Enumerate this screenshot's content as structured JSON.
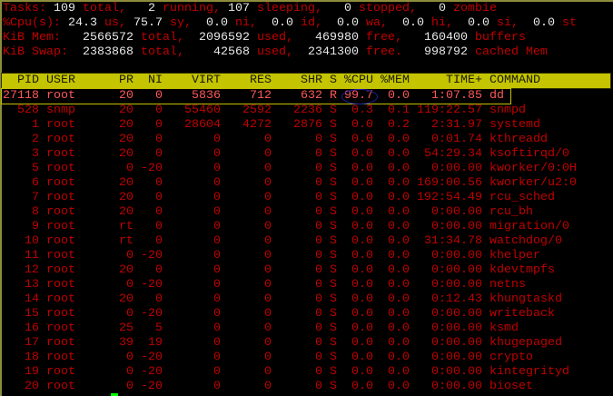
{
  "summary": {
    "tasks": {
      "label": "Tasks:",
      "total": "109",
      "total_lbl": "total,",
      "running": "2",
      "running_lbl": "running,",
      "sleeping": "107",
      "sleeping_lbl": "sleeping,",
      "stopped": "0",
      "stopped_lbl": "stopped,",
      "zombie": "0",
      "zombie_lbl": "zombie"
    },
    "cpu": {
      "label": "%Cpu(s):",
      "us": "24.3",
      "sy": "75.7",
      "ni": "0.0",
      "id": "0.0",
      "wa": "0.0",
      "hi": "0.0",
      "si": "0.0",
      "st": "0.0"
    },
    "mem": {
      "label": "KiB Mem:",
      "total": "2566572",
      "used": "2096592",
      "free": "469980",
      "buffers": "160400"
    },
    "swap": {
      "label": "KiB Swap:",
      "total": "2383868",
      "used": "42568",
      "free": "2341300",
      "cached": "998792"
    }
  },
  "columns": [
    "PID",
    "USER",
    "PR",
    "NI",
    "VIRT",
    "RES",
    "SHR",
    "S",
    "%CPU",
    "%MEM",
    "TIME+",
    "COMMAND"
  ],
  "processes": [
    [
      "27118",
      "root",
      "20",
      "0",
      "5836",
      "712",
      "632",
      "R",
      "99.7",
      "0.0",
      "1:07.85",
      "dd"
    ],
    [
      "528",
      "snmp",
      "20",
      "0",
      "55460",
      "2592",
      "2236",
      "S",
      "0.3",
      "0.1",
      "119:22.57",
      "snmpd"
    ],
    [
      "1",
      "root",
      "20",
      "0",
      "28604",
      "4272",
      "2876",
      "S",
      "0.0",
      "0.2",
      "2:31.97",
      "systemd"
    ],
    [
      "2",
      "root",
      "20",
      "0",
      "0",
      "0",
      "0",
      "S",
      "0.0",
      "0.0",
      "0:01.74",
      "kthreadd"
    ],
    [
      "3",
      "root",
      "20",
      "0",
      "0",
      "0",
      "0",
      "S",
      "0.0",
      "0.0",
      "54:29.34",
      "ksoftirqd/0"
    ],
    [
      "5",
      "root",
      "0",
      "-20",
      "0",
      "0",
      "0",
      "S",
      "0.0",
      "0.0",
      "0:00.00",
      "kworker/0:0H"
    ],
    [
      "6",
      "root",
      "20",
      "0",
      "0",
      "0",
      "0",
      "S",
      "0.0",
      "0.0",
      "169:00.56",
      "kworker/u2:0"
    ],
    [
      "7",
      "root",
      "20",
      "0",
      "0",
      "0",
      "0",
      "S",
      "0.0",
      "0.0",
      "192:54.49",
      "rcu_sched"
    ],
    [
      "8",
      "root",
      "20",
      "0",
      "0",
      "0",
      "0",
      "S",
      "0.0",
      "0.0",
      "0:00.00",
      "rcu_bh"
    ],
    [
      "9",
      "root",
      "rt",
      "0",
      "0",
      "0",
      "0",
      "S",
      "0.0",
      "0.0",
      "0:00.00",
      "migration/0"
    ],
    [
      "10",
      "root",
      "rt",
      "0",
      "0",
      "0",
      "0",
      "S",
      "0.0",
      "0.0",
      "31:34.78",
      "watchdog/0"
    ],
    [
      "11",
      "root",
      "0",
      "-20",
      "0",
      "0",
      "0",
      "S",
      "0.0",
      "0.0",
      "0:00.00",
      "khelper"
    ],
    [
      "12",
      "root",
      "20",
      "0",
      "0",
      "0",
      "0",
      "S",
      "0.0",
      "0.0",
      "0:00.00",
      "kdevtmpfs"
    ],
    [
      "13",
      "root",
      "0",
      "-20",
      "0",
      "0",
      "0",
      "S",
      "0.0",
      "0.0",
      "0:00.00",
      "netns"
    ],
    [
      "14",
      "root",
      "20",
      "0",
      "0",
      "0",
      "0",
      "S",
      "0.0",
      "0.0",
      "0:12.43",
      "khungtaskd"
    ],
    [
      "15",
      "root",
      "0",
      "-20",
      "0",
      "0",
      "0",
      "S",
      "0.0",
      "0.0",
      "0:00.00",
      "writeback"
    ],
    [
      "16",
      "root",
      "25",
      "5",
      "0",
      "0",
      "0",
      "S",
      "0.0",
      "0.0",
      "0:00.00",
      "ksmd"
    ],
    [
      "17",
      "root",
      "39",
      "19",
      "0",
      "0",
      "0",
      "S",
      "0.0",
      "0.0",
      "0:00.00",
      "khugepaged"
    ],
    [
      "18",
      "root",
      "0",
      "-20",
      "0",
      "0",
      "0",
      "S",
      "0.0",
      "0.0",
      "0:00.00",
      "crypto"
    ],
    [
      "19",
      "root",
      "0",
      "-20",
      "0",
      "0",
      "0",
      "S",
      "0.0",
      "0.0",
      "0:00.00",
      "kintegrityd"
    ],
    [
      "20",
      "root",
      "0",
      "-20",
      "0",
      "0",
      "0",
      "S",
      "0.0",
      "0.0",
      "0:00.00",
      "bioset"
    ]
  ],
  "colors": {
    "label": "#c00000",
    "value": "#e8e8e8",
    "header_bg": "#c4c400",
    "highlight_row": "#ff5858",
    "cursor": "#00ff00",
    "circle": "#1e1ea0"
  }
}
